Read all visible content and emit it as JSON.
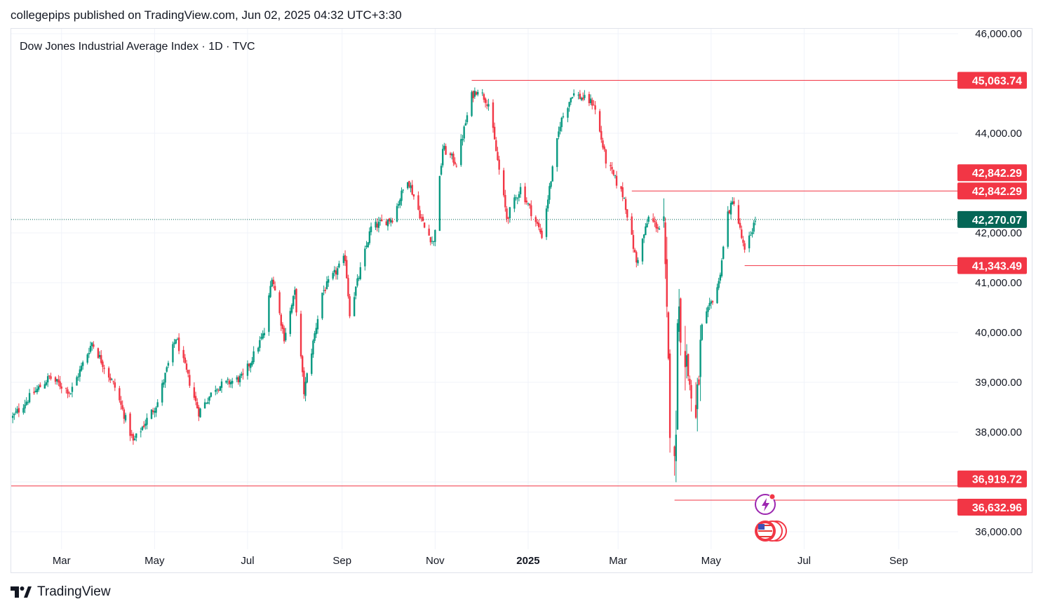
{
  "header": {
    "published_line": "collegepips published on TradingView.com, Jun 02, 2025 04:32 UTC+3:30"
  },
  "footer": {
    "brand": "TradingView"
  },
  "chart_data": {
    "type": "candlestick",
    "title": "Dow Jones Industrial Average Index · 1D · TVC",
    "x_tick_labels": [
      "Mar",
      "May",
      "Jul",
      "Sep",
      "Nov",
      "2025",
      "Mar",
      "May",
      "Jul",
      "Sep"
    ],
    "y_tick_labels": [
      "46,000.00",
      "44,000.00",
      "42,000.00",
      "41,000.00",
      "40,000.00",
      "39,000.00",
      "38,000.00",
      "36,000.00"
    ],
    "y_ticks": [
      46000,
      44000,
      42000,
      41000,
      40000,
      39000,
      38000,
      37000,
      36000
    ],
    "ylim": [
      35800,
      46200
    ],
    "x_range": [
      "2024-01-28",
      "2025-10-10"
    ],
    "colors": {
      "up": "#089981",
      "down": "#f23645",
      "level": "#f23645",
      "last": "#056656",
      "grid": "#f0f3fa"
    },
    "last_price": {
      "value": 42270.07,
      "label": "42,270.07"
    },
    "levels": [
      {
        "value": 45063.74,
        "label": "45,063.74",
        "start": "2024-11-25"
      },
      {
        "value": 42842.29,
        "label": "42,842.29",
        "start": "2025-03-10"
      },
      {
        "value": 41343.49,
        "label": "41,343.49",
        "start": "2025-05-23"
      },
      {
        "value": 36919.72,
        "label": "36,919.72",
        "start": "2024-01-28"
      },
      {
        "value": 36632.96,
        "label": "36,632.96",
        "start": "2025-04-07"
      }
    ],
    "extra_label": {
      "value": 42842.29,
      "label": "42,842.29"
    },
    "anchors": [
      [
        "2024-01-29",
        38300
      ],
      [
        "2024-02-09",
        38700
      ],
      [
        "2024-02-22",
        39100
      ],
      [
        "2024-03-07",
        38800
      ],
      [
        "2024-03-21",
        39800
      ],
      [
        "2024-04-05",
        38900
      ],
      [
        "2024-04-17",
        37800
      ],
      [
        "2024-05-03",
        38600
      ],
      [
        "2024-05-15",
        39900
      ],
      [
        "2024-05-30",
        38400
      ],
      [
        "2024-06-10",
        38900
      ],
      [
        "2024-06-28",
        39100
      ],
      [
        "2024-07-12",
        40000
      ],
      [
        "2024-07-17",
        41150
      ],
      [
        "2024-07-25",
        39900
      ],
      [
        "2024-08-01",
        40800
      ],
      [
        "2024-08-07",
        38800
      ],
      [
        "2024-08-19",
        40800
      ],
      [
        "2024-09-03",
        41500
      ],
      [
        "2024-09-06",
        40400
      ],
      [
        "2024-09-20",
        42100
      ],
      [
        "2024-10-04",
        42300
      ],
      [
        "2024-10-14",
        43100
      ],
      [
        "2024-10-25",
        42100
      ],
      [
        "2024-10-31",
        41800
      ],
      [
        "2024-11-06",
        43700
      ],
      [
        "2024-11-15",
        43400
      ],
      [
        "2024-11-25",
        44750
      ],
      [
        "2024-11-29",
        44900
      ],
      [
        "2024-12-06",
        44600
      ],
      [
        "2024-12-18",
        42300
      ],
      [
        "2024-12-27",
        42900
      ],
      [
        "2025-01-10",
        41950
      ],
      [
        "2025-01-22",
        44200
      ],
      [
        "2025-01-30",
        44800
      ],
      [
        "2025-02-13",
        44600
      ],
      [
        "2025-02-21",
        43450
      ],
      [
        "2025-03-05",
        42700
      ],
      [
        "2025-03-13",
        41400
      ],
      [
        "2025-03-21",
        42300
      ],
      [
        "2025-03-31",
        42000
      ],
      [
        "2025-04-04",
        38300
      ],
      [
        "2025-04-08",
        37650
      ],
      [
        "2025-04-09",
        40600
      ],
      [
        "2025-04-21",
        38170
      ],
      [
        "2025-04-25",
        40100
      ],
      [
        "2025-05-06",
        41000
      ],
      [
        "2025-05-12",
        42400
      ],
      [
        "2025-05-16",
        42650
      ],
      [
        "2025-05-23",
        41600
      ],
      [
        "2025-05-30",
        42270
      ]
    ]
  }
}
